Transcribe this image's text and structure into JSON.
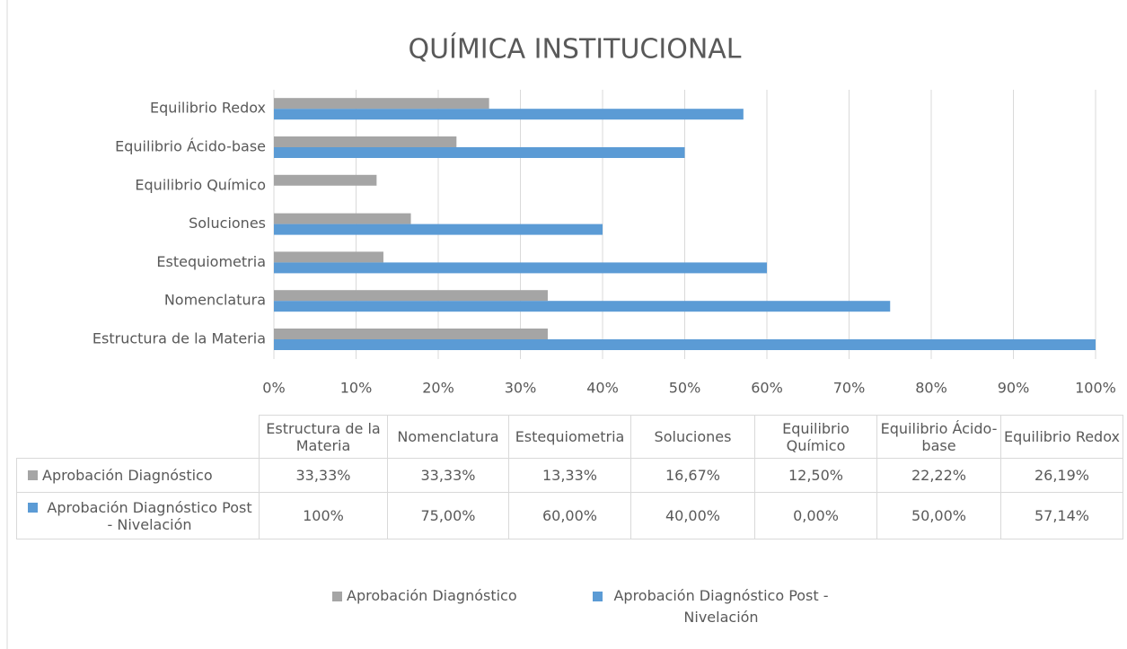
{
  "chart_data": {
    "type": "bar",
    "orientation": "horizontal",
    "title": "QUÍMICA INSTITUCIONAL",
    "categories": [
      "Estructura de la Materia",
      "Nomenclatura",
      "Estequiometria",
      "Soluciones",
      "Equilibrio Químico",
      "Equilibrio Ácido-base",
      "Equilibrio Redox"
    ],
    "series": [
      {
        "name": "Aprobación Diagnóstico",
        "color": "#a5a5a5",
        "values": [
          33.33,
          33.33,
          13.33,
          16.67,
          12.5,
          22.22,
          26.19
        ],
        "value_labels": [
          "33,33%",
          "33,33%",
          "13,33%",
          "16,67%",
          "12,50%",
          "22,22%",
          "26,19%"
        ]
      },
      {
        "name": "Aprobación Diagnóstico Post - Nivelación",
        "color": "#5b9bd5",
        "values": [
          100,
          75,
          60,
          40,
          0,
          50,
          57.14
        ],
        "value_labels": [
          "100%",
          "75,00%",
          "60,00%",
          "40,00%",
          "0,00%",
          "50,00%",
          "57,14%"
        ]
      }
    ],
    "xlim": [
      0,
      100
    ],
    "xticks": [
      {
        "value": 0,
        "label": "0%"
      },
      {
        "value": 10,
        "label": "10%"
      },
      {
        "value": 20,
        "label": "20%"
      },
      {
        "value": 30,
        "label": "30%"
      },
      {
        "value": 40,
        "label": "40%"
      },
      {
        "value": 50,
        "label": "50%"
      },
      {
        "value": 60,
        "label": "60%"
      },
      {
        "value": 70,
        "label": "70%"
      },
      {
        "value": 80,
        "label": "80%"
      },
      {
        "value": 90,
        "label": "90%"
      },
      {
        "value": 100,
        "label": "100%"
      }
    ],
    "grid": true,
    "legend": "bottom"
  }
}
